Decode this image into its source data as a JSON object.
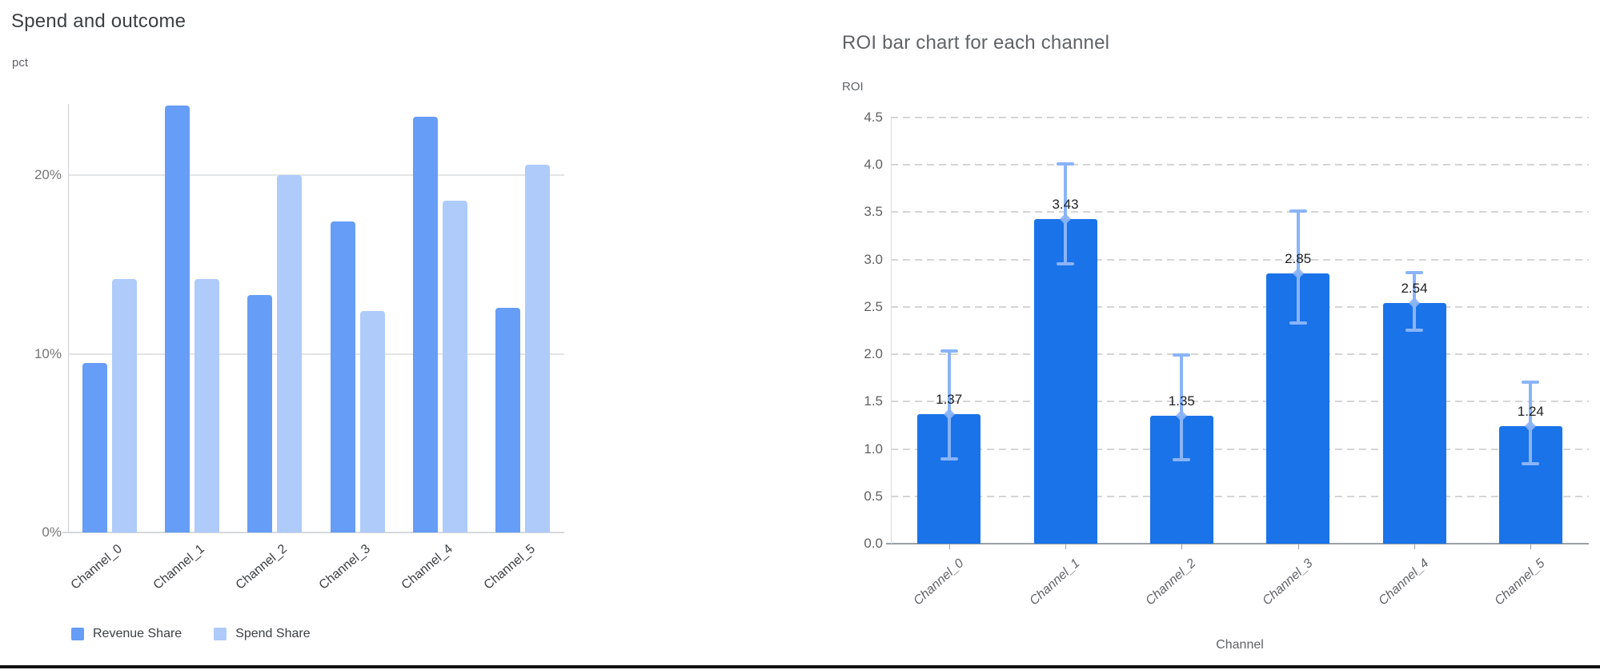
{
  "page": {
    "background": "#ffffff",
    "bottom_divider_color": "#121212"
  },
  "chart_data": [
    {
      "type": "bar",
      "title": "Spend and outcome",
      "y_axis_title": "pct",
      "x_axis_title": "",
      "categories": [
        "Channel_0",
        "Channel_1",
        "Channel_2",
        "Channel_3",
        "Channel_4",
        "Channel_5"
      ],
      "series": [
        {
          "name": "Revenue Share",
          "color": "#669df6",
          "values": [
            9.5,
            23.9,
            13.3,
            17.4,
            23.3,
            12.6
          ]
        },
        {
          "name": "Spend Share",
          "color": "#aecbfa",
          "values": [
            14.2,
            14.2,
            20.0,
            12.4,
            18.6,
            20.6
          ]
        }
      ],
      "y_ticks": [
        {
          "value": 0,
          "label": "0%"
        },
        {
          "value": 10,
          "label": "10%"
        },
        {
          "value": 20,
          "label": "20%"
        }
      ],
      "ylim": [
        0,
        24
      ],
      "grid": "horizontal-solid",
      "legend_position": "bottom",
      "colors": {
        "title": "#3c4043",
        "tick_label": "#757575",
        "x_label": "#3c4043",
        "gridline": "#e3e4e6",
        "baseline": "#d6d9dc",
        "axis_line": "#cdd1d5"
      }
    },
    {
      "type": "bar",
      "title": "ROI bar chart for each channel",
      "y_axis_title": "ROI",
      "x_axis_title": "Channel",
      "categories": [
        "Channel_0",
        "Channel_1",
        "Channel_2",
        "Channel_3",
        "Channel_4",
        "Channel_5"
      ],
      "series": [
        {
          "name": "ROI",
          "color": "#1a73e8",
          "values": [
            1.37,
            3.43,
            1.35,
            2.85,
            2.54,
            1.24
          ]
        }
      ],
      "bar_labels": [
        "1.37",
        "3.43",
        "1.35",
        "2.85",
        "2.54",
        "1.24"
      ],
      "error_bars": {
        "color": "#8ab4f8",
        "upper": [
          2.04,
          4.02,
          2.0,
          3.52,
          2.87,
          1.71
        ],
        "lower": [
          0.89,
          2.95,
          0.88,
          2.32,
          2.25,
          0.84
        ]
      },
      "y_ticks": [
        {
          "value": 0.0,
          "label": "0.0"
        },
        {
          "value": 0.5,
          "label": "0.5"
        },
        {
          "value": 1.0,
          "label": "1.0"
        },
        {
          "value": 1.5,
          "label": "1.5"
        },
        {
          "value": 2.0,
          "label": "2.0"
        },
        {
          "value": 2.5,
          "label": "2.5"
        },
        {
          "value": 3.0,
          "label": "3.0"
        },
        {
          "value": 3.5,
          "label": "3.5"
        },
        {
          "value": 4.0,
          "label": "4.0"
        },
        {
          "value": 4.5,
          "label": "4.5"
        }
      ],
      "ylim": [
        0,
        4.5
      ],
      "grid": "horizontal-dashed",
      "legend_position": "none",
      "colors": {
        "title": "#5f6368",
        "tick_label": "#616161",
        "x_label": "#5f6368",
        "value_label": "#202124",
        "gridline": "#d5d5d5",
        "baseline": "#9aa0a6",
        "axis_line": "#dadce0",
        "tick_mark": "#9aa0a6"
      }
    }
  ]
}
